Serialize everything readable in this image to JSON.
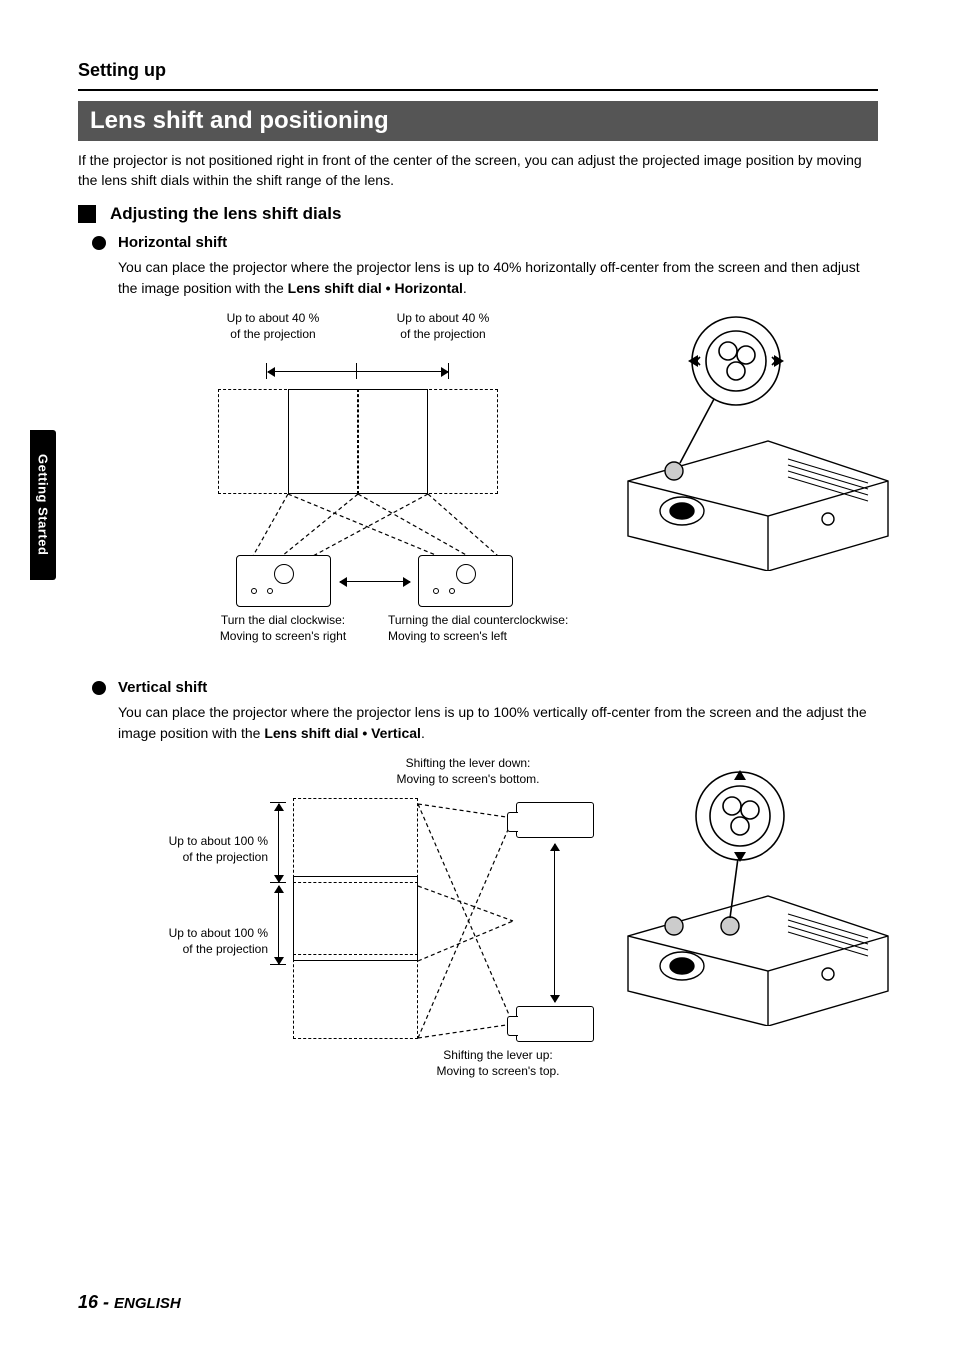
{
  "header": {
    "section": "Setting up"
  },
  "band": {
    "title": "Lens shift and positioning"
  },
  "intro": "If the projector is not positioned right in front of the center of the screen, you can adjust the projected image position by moving the lens shift dials within the shift range of the lens.",
  "h2": {
    "title": "Adjusting the lens shift dials"
  },
  "horiz": {
    "title": "Horizontal shift",
    "para_a": "You can place the projector where the projector lens is up to 40% horizontally off-center from the screen and then adjust the image position with the ",
    "para_bold": "Lens shift dial • Horizontal",
    "para_b": ".",
    "label_left": "Up to about 40 %\nof the projection",
    "label_right": "Up to about 40 %\nof the projection",
    "cap_left_a": "Turn the dial clockwise:",
    "cap_left_b": "Moving to screen's right",
    "cap_right_a": "Turning the dial counterclockwise:",
    "cap_right_b": "Moving to screen's left"
  },
  "vert": {
    "title": "Vertical shift",
    "para_a": "You can place the projector where the projector lens is up to 100% vertically off-center from the screen and the adjust the image position with the ",
    "para_bold": "Lens shift dial • Vertical",
    "para_b": ".",
    "label_top": "Up to about 100 %\nof the projection",
    "label_bottom": "Up to about 100 %\nof the projection",
    "cap_top_a": "Shifting the lever down:",
    "cap_top_b": "Moving to screen's bottom.",
    "cap_bot_a": "Shifting the lever up:",
    "cap_bot_b": "Moving to screen's top."
  },
  "sidetab": "Getting Started",
  "footer": {
    "page": "16",
    "dash": " - ",
    "lang": "ENGLISH"
  },
  "lens_icon": {
    "outer_stroke": "#000",
    "fill": "#fff"
  }
}
